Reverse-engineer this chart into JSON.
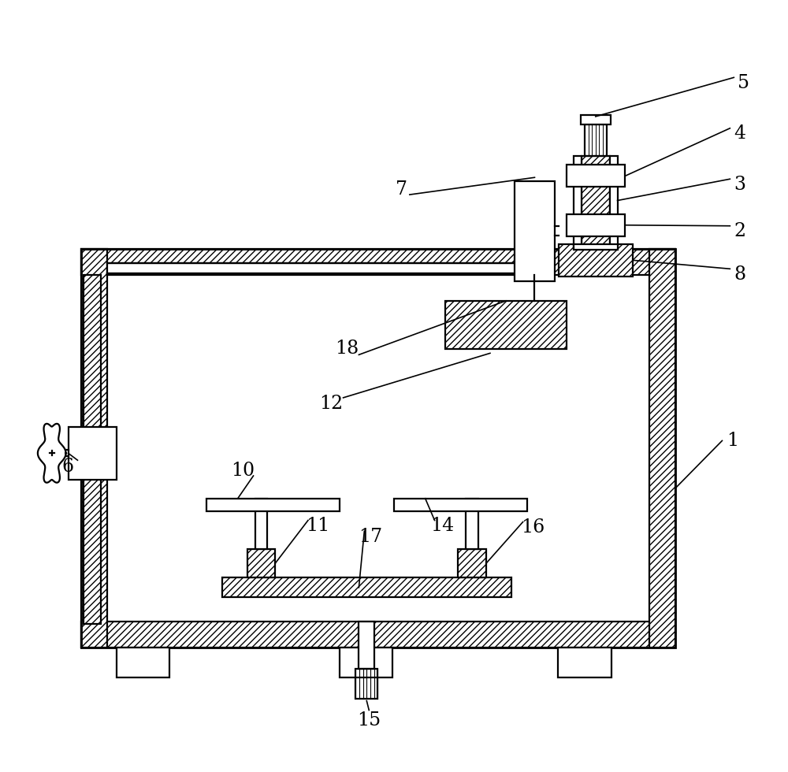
{
  "background_color": "#ffffff",
  "line_color": "#000000",
  "lw": 1.6,
  "fig_width": 10.0,
  "fig_height": 9.8
}
